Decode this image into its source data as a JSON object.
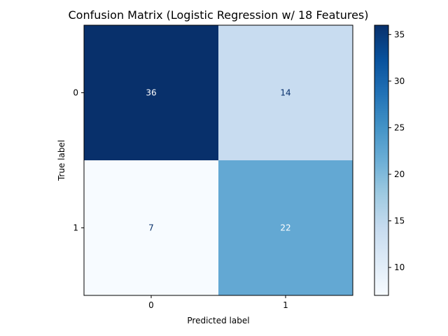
{
  "chart_data": {
    "type": "heatmap",
    "title": "Confusion Matrix (Logistic Regression w/ 18 Features)",
    "xlabel": "Predicted label",
    "ylabel": "True label",
    "x_categories": [
      "0",
      "1"
    ],
    "y_categories": [
      "0",
      "1"
    ],
    "values": [
      [
        36,
        14
      ],
      [
        7,
        22
      ]
    ],
    "colormap": "Blues",
    "colorbar": {
      "range": [
        7,
        36
      ],
      "ticks": [
        10,
        15,
        20,
        25,
        30,
        35
      ]
    },
    "cell_colors": {
      "36": "#08306b",
      "14": "#c8dcf0",
      "7": "#f7fbff",
      "22": "#63a8d3"
    },
    "text_colors": {
      "dark": "#ffffff",
      "light": "#08306b"
    }
  }
}
